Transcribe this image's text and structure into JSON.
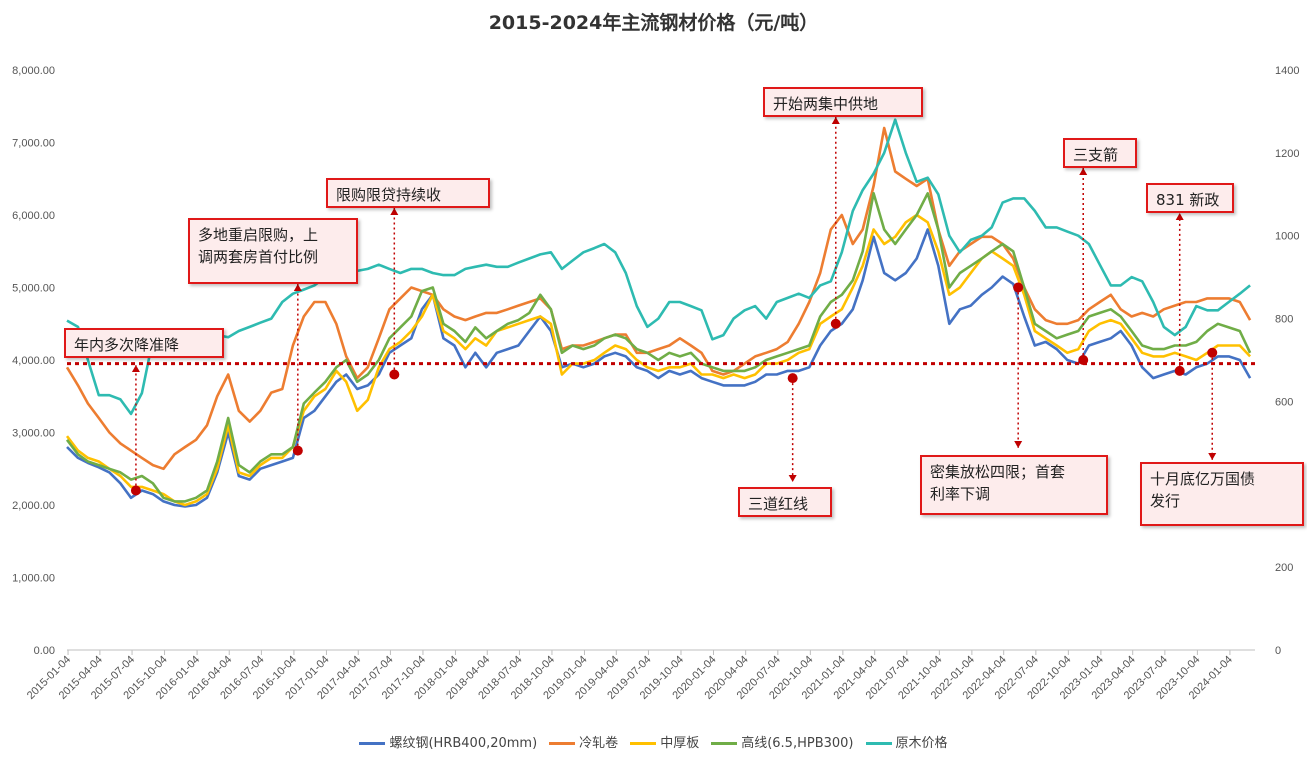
{
  "chart_data": {
    "type": "line",
    "title": "2015-2024年主流钢材价格（元/吨）",
    "x_dates": [
      "2015-01",
      "2015-02",
      "2015-03",
      "2015-04",
      "2015-05",
      "2015-06",
      "2015-07",
      "2015-08",
      "2015-09",
      "2015-10",
      "2015-11",
      "2015-12",
      "2016-01",
      "2016-02",
      "2016-03",
      "2016-04",
      "2016-05",
      "2016-06",
      "2016-07",
      "2016-08",
      "2016-09",
      "2016-10",
      "2016-11",
      "2016-12",
      "2017-01",
      "2017-02",
      "2017-03",
      "2017-04",
      "2017-05",
      "2017-06",
      "2017-07",
      "2017-08",
      "2017-09",
      "2017-10",
      "2017-11",
      "2017-12",
      "2018-01",
      "2018-02",
      "2018-03",
      "2018-04",
      "2018-05",
      "2018-06",
      "2018-07",
      "2018-08",
      "2018-09",
      "2018-10",
      "2018-11",
      "2018-12",
      "2019-01",
      "2019-02",
      "2019-03",
      "2019-04",
      "2019-05",
      "2019-06",
      "2019-07",
      "2019-08",
      "2019-09",
      "2019-10",
      "2019-11",
      "2019-12",
      "2020-01",
      "2020-02",
      "2020-03",
      "2020-04",
      "2020-05",
      "2020-06",
      "2020-07",
      "2020-08",
      "2020-09",
      "2020-10",
      "2020-11",
      "2020-12",
      "2021-01",
      "2021-02",
      "2021-03",
      "2021-04",
      "2021-05",
      "2021-06",
      "2021-07",
      "2021-08",
      "2021-09",
      "2021-10",
      "2021-11",
      "2021-12",
      "2022-01",
      "2022-02",
      "2022-03",
      "2022-04",
      "2022-05",
      "2022-06",
      "2022-07",
      "2022-08",
      "2022-09",
      "2022-10",
      "2022-11",
      "2022-12",
      "2023-01",
      "2023-02",
      "2023-03",
      "2023-04",
      "2023-05",
      "2023-06",
      "2023-07",
      "2023-08",
      "2023-09",
      "2023-10",
      "2023-11",
      "2023-12",
      "2024-01",
      "2024-02",
      "2024-03"
    ],
    "x_tick_labels": [
      "2015-01-04",
      "2015-04-04",
      "2015-07-04",
      "2015-10-04",
      "2016-01-04",
      "2016-04-04",
      "2016-07-04",
      "2016-10-04",
      "2017-01-04",
      "2017-04-04",
      "2017-07-04",
      "2017-10-04",
      "2018-01-04",
      "2018-04-04",
      "2018-07-04",
      "2018-10-04",
      "2019-01-04",
      "2019-04-04",
      "2019-07-04",
      "2019-10-04",
      "2020-01-04",
      "2020-04-04",
      "2020-07-04",
      "2020-10-04",
      "2021-01-04",
      "2021-04-04",
      "2021-07-04",
      "2021-10-04",
      "2022-01-04",
      "2022-04-04",
      "2022-07-04",
      "2022-10-04",
      "2023-01-04",
      "2023-04-04",
      "2023-07-04",
      "2023-10-04",
      "2024-01-04"
    ],
    "y_left": {
      "min": 0,
      "max": 8000,
      "ticks": [
        "0.00",
        "1,000.00",
        "2,000.00",
        "3,000.00",
        "4,000.00",
        "5,000.00",
        "6,000.00",
        "7,000.00",
        "8,000.00"
      ]
    },
    "y_right": {
      "min": 0,
      "max": 1400,
      "ticks": [
        "0",
        "200",
        "400",
        "600",
        "800",
        "1000",
        "1200",
        "1400"
      ]
    },
    "reference_line_value": 3950,
    "series": [
      {
        "name": "螺纹钢(HRB400,20mm)",
        "color": "#4472c4",
        "axis": "left",
        "values": [
          2800,
          2650,
          2580,
          2520,
          2450,
          2300,
          2100,
          2200,
          2150,
          2050,
          2000,
          1980,
          2000,
          2100,
          2450,
          3000,
          2400,
          2350,
          2500,
          2550,
          2600,
          2650,
          3200,
          3300,
          3500,
          3700,
          3800,
          3600,
          3650,
          3800,
          4100,
          4200,
          4300,
          4700,
          4900,
          4300,
          4200,
          3900,
          4100,
          3900,
          4100,
          4150,
          4200,
          4400,
          4600,
          4400,
          3900,
          3950,
          3900,
          3950,
          4050,
          4100,
          4050,
          3900,
          3850,
          3750,
          3850,
          3800,
          3850,
          3750,
          3700,
          3650,
          3650,
          3650,
          3700,
          3800,
          3800,
          3850,
          3850,
          3900,
          4200,
          4400,
          4500,
          4700,
          5100,
          5700,
          5200,
          5100,
          5200,
          5400,
          5800,
          5300,
          4500,
          4700,
          4750,
          4900,
          5000,
          5150,
          5050,
          4600,
          4200,
          4250,
          4150,
          4000,
          3950,
          4200,
          4250,
          4300,
          4400,
          4200,
          3900,
          3750,
          3800,
          3850,
          3800,
          3900,
          3950,
          4050,
          4050,
          4000,
          3750
        ]
      },
      {
        "name": "冷轧卷",
        "color": "#ed7d31",
        "axis": "left",
        "values": [
          3900,
          3650,
          3400,
          3200,
          3000,
          2850,
          2750,
          2650,
          2550,
          2500,
          2700,
          2800,
          2900,
          3100,
          3500,
          3800,
          3300,
          3150,
          3300,
          3550,
          3600,
          4200,
          4600,
          4800,
          4800,
          4500,
          4050,
          3750,
          3900,
          4300,
          4700,
          4850,
          5000,
          4950,
          4900,
          4700,
          4600,
          4550,
          4600,
          4650,
          4650,
          4700,
          4750,
          4800,
          4850,
          4700,
          4150,
          4200,
          4200,
          4250,
          4300,
          4350,
          4350,
          4100,
          4100,
          4150,
          4200,
          4300,
          4200,
          4100,
          3850,
          3800,
          3850,
          3950,
          4050,
          4100,
          4150,
          4250,
          4500,
          4800,
          5200,
          5800,
          6000,
          5600,
          5800,
          6400,
          7200,
          6600,
          6500,
          6400,
          6500,
          5800,
          5300,
          5500,
          5600,
          5700,
          5700,
          5600,
          5400,
          5000,
          4700,
          4550,
          4500,
          4500,
          4550,
          4700,
          4800,
          4900,
          4700,
          4600,
          4650,
          4600,
          4700,
          4750,
          4800,
          4800,
          4850,
          4850,
          4850,
          4800,
          4550
        ]
      },
      {
        "name": "中厚板",
        "color": "#ffc000",
        "axis": "left",
        "values": [
          2950,
          2750,
          2650,
          2600,
          2500,
          2400,
          2250,
          2250,
          2200,
          2150,
          2050,
          2000,
          2050,
          2150,
          2500,
          3100,
          2450,
          2400,
          2550,
          2650,
          2650,
          2800,
          3300,
          3500,
          3600,
          3850,
          3700,
          3300,
          3450,
          3900,
          4150,
          4250,
          4400,
          4600,
          4900,
          4400,
          4300,
          4150,
          4300,
          4200,
          4400,
          4450,
          4500,
          4550,
          4600,
          4500,
          3800,
          3950,
          3950,
          4000,
          4100,
          4200,
          4150,
          4000,
          3900,
          3850,
          3900,
          3900,
          3950,
          3800,
          3800,
          3750,
          3800,
          3750,
          3800,
          3950,
          3950,
          4000,
          4100,
          4150,
          4500,
          4600,
          4700,
          5000,
          5300,
          5800,
          5600,
          5700,
          5900,
          6000,
          5900,
          5500,
          4900,
          5000,
          5200,
          5400,
          5500,
          5400,
          5300,
          4900,
          4400,
          4300,
          4200,
          4100,
          4150,
          4400,
          4500,
          4550,
          4500,
          4300,
          4100,
          4050,
          4050,
          4100,
          4050,
          4000,
          4100,
          4200,
          4200,
          4200,
          4050
        ]
      },
      {
        "name": "高线(6.5,HPB300)",
        "color": "#70ad47",
        "axis": "left",
        "values": [
          2900,
          2700,
          2600,
          2550,
          2500,
          2450,
          2350,
          2400,
          2300,
          2100,
          2050,
          2050,
          2100,
          2200,
          2600,
          3200,
          2550,
          2450,
          2600,
          2700,
          2700,
          2800,
          3400,
          3550,
          3700,
          3900,
          4000,
          3700,
          3800,
          4000,
          4300,
          4450,
          4600,
          4950,
          5000,
          4500,
          4400,
          4250,
          4450,
          4300,
          4400,
          4500,
          4550,
          4650,
          4900,
          4700,
          4100,
          4200,
          4150,
          4200,
          4300,
          4350,
          4300,
          4150,
          4100,
          4000,
          4100,
          4050,
          4100,
          3950,
          3900,
          3850,
          3850,
          3850,
          3900,
          4000,
          4050,
          4100,
          4150,
          4200,
          4600,
          4800,
          4900,
          5100,
          5500,
          6300,
          5800,
          5600,
          5800,
          6000,
          6300,
          5800,
          5000,
          5200,
          5300,
          5400,
          5500,
          5600,
          5500,
          5000,
          4500,
          4400,
          4300,
          4350,
          4400,
          4600,
          4650,
          4700,
          4600,
          4400,
          4200,
          4150,
          4150,
          4200,
          4200,
          4250,
          4400,
          4500,
          4450,
          4400,
          4100
        ]
      },
      {
        "name": "原木价格",
        "color": "#2ebbb1",
        "axis": "right",
        "values": [
          795,
          780,
          700,
          615,
          615,
          605,
          570,
          620,
          750,
          740,
          720,
          720,
          740,
          750,
          760,
          755,
          770,
          780,
          790,
          800,
          840,
          860,
          870,
          880,
          900,
          910,
          920,
          915,
          920,
          930,
          920,
          910,
          920,
          920,
          910,
          905,
          905,
          920,
          925,
          930,
          925,
          925,
          935,
          945,
          955,
          960,
          920,
          940,
          960,
          970,
          980,
          960,
          910,
          830,
          780,
          800,
          840,
          840,
          830,
          820,
          750,
          760,
          800,
          820,
          830,
          800,
          840,
          850,
          860,
          850,
          880,
          890,
          960,
          1060,
          1110,
          1150,
          1200,
          1280,
          1200,
          1130,
          1140,
          1100,
          1000,
          960,
          990,
          1000,
          1020,
          1080,
          1090,
          1090,
          1060,
          1020,
          1020,
          1010,
          1000,
          980,
          930,
          880,
          880,
          900,
          890,
          840,
          780,
          760,
          780,
          830,
          820,
          820,
          840,
          860,
          880
        ]
      }
    ],
    "annotations": [
      {
        "text": "年内多次降准降",
        "point_date": "2015-07",
        "point_value": 2200,
        "direction": "up"
      },
      {
        "text": "多地重启限购，上\n调两套房首付比例",
        "point_date": "2016-10",
        "point_value": 2750,
        "direction": "up"
      },
      {
        "text": "限购限贷持续收",
        "point_date": "2017-07",
        "point_value": 3800,
        "direction": "up"
      },
      {
        "text": "开始两集中供地",
        "point_date": "2020-12",
        "point_value": 4500,
        "direction": "up"
      },
      {
        "text": "三道红线",
        "point_date": "2020-08",
        "point_value": 3750,
        "direction": "down"
      },
      {
        "text": "密集放松四限；首套\n利率下调",
        "point_date": "2022-05",
        "point_value": 5000,
        "direction": "down"
      },
      {
        "text": "三支箭",
        "point_date": "2022-11",
        "point_value": 4000,
        "direction": "up"
      },
      {
        "text": "831 新政",
        "point_date": "2023-08",
        "point_value": 3850,
        "direction": "up"
      },
      {
        "text": "十月底亿万国债\n发行",
        "point_date": "2023-11",
        "point_value": 4100,
        "direction": "down"
      }
    ],
    "legend_position": "bottom",
    "grid": false
  }
}
